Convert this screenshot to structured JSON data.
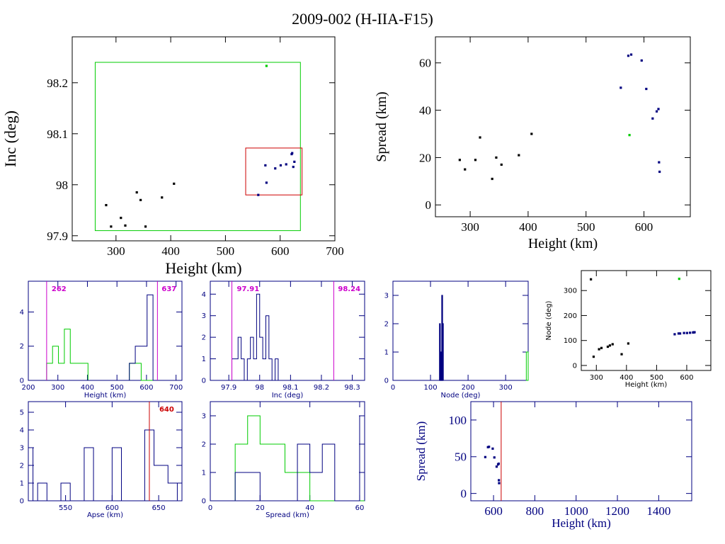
{
  "title": "2009-002 (H-IIA-F15)",
  "colors": {
    "green": "#00cc00",
    "blue": "#000080",
    "red": "#cc0000",
    "magenta": "#cc00cc",
    "black": "#000000"
  },
  "chart_data": [
    {
      "id": "inc-vs-height",
      "type": "scatter",
      "xlabel": "Height (km)",
      "ylabel": "Inc (deg)",
      "xlim": [
        220,
        700
      ],
      "ylim": [
        97.89,
        98.29
      ],
      "xticks": [
        300,
        400,
        500,
        600,
        700
      ],
      "yticks": [
        97.9,
        98,
        98.1,
        98.2
      ],
      "xtick_labels": [
        "300",
        "400",
        "500",
        "600",
        "700"
      ],
      "ytick_labels": [
        "97.9",
        "98",
        "98.1",
        "98.2"
      ],
      "points_black": [
        [
          282,
          97.96
        ],
        [
          291,
          97.918
        ],
        [
          309,
          97.935
        ],
        [
          317,
          97.92
        ],
        [
          338,
          97.985
        ],
        [
          345,
          97.97
        ],
        [
          354,
          97.918
        ],
        [
          384,
          97.975
        ],
        [
          406,
          98.002
        ]
      ],
      "points_blue": [
        [
          560,
          97.98
        ],
        [
          573,
          98.038
        ],
        [
          575,
          98.004
        ],
        [
          591,
          98.032
        ],
        [
          601,
          98.038
        ],
        [
          611,
          98.04
        ],
        [
          621,
          98.06
        ],
        [
          622,
          98.062
        ],
        [
          624,
          98.035
        ],
        [
          626,
          98.045
        ]
      ],
      "points_green": [
        [
          575,
          98.233
        ]
      ],
      "boxes": [
        {
          "x": [
            262,
            637
          ],
          "y": [
            97.91,
            98.24
          ],
          "color": "green"
        },
        {
          "x": [
            537,
            640
          ],
          "y": [
            97.98,
            98.072
          ],
          "color": "red"
        }
      ]
    },
    {
      "id": "spread-vs-height",
      "type": "scatter",
      "xlabel": "Height (km)",
      "ylabel": "Spread (km)",
      "xlim": [
        240,
        680
      ],
      "ylim": [
        -5,
        71
      ],
      "xticks": [
        300,
        400,
        500,
        600
      ],
      "yticks": [
        0,
        20,
        40,
        60
      ],
      "xtick_labels": [
        "300",
        "400",
        "500",
        "600"
      ],
      "ytick_labels": [
        "0",
        "20",
        "40",
        "60"
      ],
      "points_black": [
        [
          282,
          19
        ],
        [
          291,
          15
        ],
        [
          309,
          19
        ],
        [
          317,
          28.5
        ],
        [
          338,
          11
        ],
        [
          345,
          20
        ],
        [
          354,
          17
        ],
        [
          384,
          21
        ],
        [
          406,
          30
        ]
      ],
      "points_blue": [
        [
          560,
          49.5
        ],
        [
          573,
          63
        ],
        [
          578,
          63.5
        ],
        [
          596,
          61
        ],
        [
          604,
          49
        ],
        [
          615,
          36.5
        ],
        [
          622,
          39.5
        ],
        [
          625,
          40.5
        ],
        [
          626,
          18
        ],
        [
          627,
          14
        ]
      ],
      "points_green": [
        [
          575,
          29.5
        ]
      ]
    },
    {
      "id": "hist-height",
      "type": "bar",
      "xlabel": "Height (km)",
      "xlim": [
        200,
        720
      ],
      "ylim": [
        0,
        5.8
      ],
      "xticks": [
        200,
        300,
        400,
        500,
        600,
        700
      ],
      "yticks": [
        0,
        2,
        4
      ],
      "xtick_labels": [
        "200",
        "300",
        "400",
        "500",
        "600",
        "700"
      ],
      "ytick_labels": [
        "0",
        "2",
        "4"
      ],
      "bin_edges": [
        262,
        282,
        302,
        322,
        342,
        362,
        382,
        402,
        422,
        442,
        462,
        482,
        502,
        522,
        542,
        562,
        582,
        602,
        622,
        642
      ],
      "counts_green": [
        1,
        2,
        1,
        3,
        1,
        1,
        1,
        0,
        0,
        0,
        0,
        0,
        0,
        0,
        1,
        1,
        0,
        0,
        0
      ],
      "counts_blue": [
        0,
        0,
        0,
        0,
        0,
        0,
        0,
        0,
        0,
        0,
        0,
        0,
        0,
        0,
        1,
        2,
        2,
        5,
        0
      ],
      "vlines": [
        262,
        637
      ],
      "labels": [
        "262",
        "637"
      ]
    },
    {
      "id": "hist-inc",
      "type": "bar",
      "xlabel": "Inc (deg)",
      "xlim": [
        97.84,
        98.34
      ],
      "ylim": [
        0,
        4.6
      ],
      "xticks": [
        97.9,
        98,
        98.1,
        98.2,
        98.3
      ],
      "yticks": [
        0,
        1,
        2,
        3,
        4
      ],
      "xtick_labels": [
        "97.9",
        "98",
        "98.1",
        "98.2",
        "98.3"
      ],
      "ytick_labels": [
        "0",
        "1",
        "2",
        "3",
        "4"
      ],
      "bin_edges": [
        97.91,
        97.92,
        97.93,
        97.94,
        97.95,
        97.96,
        97.97,
        97.98,
        97.99,
        98.0,
        98.01,
        98.02,
        98.03,
        98.04,
        98.05,
        98.06,
        98.07
      ],
      "counts": [
        1,
        1,
        2,
        1,
        0,
        1,
        2,
        1,
        4,
        2,
        1,
        3,
        1,
        0,
        1,
        0
      ],
      "vlines": [
        97.91,
        98.24
      ],
      "labels": [
        "97.91",
        "98.24"
      ]
    },
    {
      "id": "hist-node",
      "type": "bar",
      "xlabel": "Node (deg)",
      "xlim": [
        0,
        360
      ],
      "ylim": [
        0,
        3.5
      ],
      "xticks": [
        0,
        100,
        200,
        300
      ],
      "yticks": [
        0,
        1,
        2,
        3
      ],
      "xtick_labels": [
        "0",
        "100",
        "200",
        "300"
      ],
      "ytick_labels": [
        "0",
        "1",
        "2",
        "3"
      ],
      "bars_blue": [
        [
          124,
          126,
          2
        ],
        [
          126,
          128,
          1
        ],
        [
          128,
          130,
          1
        ],
        [
          130,
          132,
          3
        ],
        [
          132,
          134,
          2
        ]
      ],
      "bars_green": [
        [
          355,
          360,
          1
        ]
      ]
    },
    {
      "id": "node-vs-height",
      "type": "scatter",
      "xlabel": "Height (km)",
      "ylabel": "Node (deg)",
      "xlim": [
        250,
        680
      ],
      "ylim": [
        -20,
        380
      ],
      "xticks": [
        300,
        400,
        500,
        600
      ],
      "yticks": [
        0,
        100,
        200,
        300
      ],
      "xtick_labels": [
        "300",
        "400",
        "500",
        "600"
      ],
      "ytick_labels": [
        "0",
        "100",
        "200",
        "300"
      ],
      "points_black": [
        [
          282,
          345
        ],
        [
          291,
          35
        ],
        [
          309,
          65
        ],
        [
          317,
          70
        ],
        [
          338,
          75
        ],
        [
          345,
          80
        ],
        [
          354,
          85
        ],
        [
          384,
          45
        ],
        [
          406,
          88
        ]
      ],
      "points_blue": [
        [
          560,
          125
        ],
        [
          573,
          128
        ],
        [
          578,
          128
        ],
        [
          591,
          130
        ],
        [
          601,
          130
        ],
        [
          611,
          131
        ],
        [
          621,
          132
        ],
        [
          622,
          132
        ],
        [
          624,
          133
        ],
        [
          626,
          133
        ]
      ],
      "points_green": [
        [
          575,
          347
        ]
      ]
    },
    {
      "id": "hist-apse",
      "type": "bar",
      "xlabel": "Apse (km)",
      "xlim": [
        510,
        675
      ],
      "ylim": [
        0,
        5.6
      ],
      "xticks": [
        550,
        600,
        650
      ],
      "yticks": [
        0,
        1,
        2,
        3,
        4,
        5
      ],
      "xtick_labels": [
        "550",
        "600",
        "650"
      ],
      "ytick_labels": [
        "0",
        "1",
        "2",
        "3",
        "4",
        "5"
      ],
      "bin_edges": [
        510,
        515,
        520,
        525,
        530,
        535,
        540,
        545,
        550,
        555,
        560,
        565,
        570,
        575,
        580,
        585,
        590,
        595,
        600,
        605,
        610,
        615,
        620,
        625,
        630,
        635,
        640,
        645,
        650,
        655,
        660,
        665,
        670,
        675
      ],
      "counts": [
        3,
        0,
        1,
        1,
        0,
        0,
        0,
        1,
        1,
        0,
        0,
        0,
        3,
        3,
        0,
        0,
        0,
        0,
        3,
        3,
        0,
        0,
        0,
        0,
        0,
        4,
        4,
        2,
        2,
        2,
        1,
        1,
        0
      ],
      "vlines": [
        640
      ],
      "labels": [
        "640"
      ]
    },
    {
      "id": "hist-spread",
      "type": "bar",
      "xlabel": "Spread (km)",
      "xlim": [
        0,
        62
      ],
      "ylim": [
        0,
        3.5
      ],
      "xticks": [
        0,
        20,
        40,
        60
      ],
      "yticks": [
        0,
        1,
        2,
        3
      ],
      "xtick_labels": [
        "0",
        "20",
        "40",
        "60"
      ],
      "ytick_labels": [
        "0",
        "1",
        "2",
        "3"
      ],
      "bin_edges": [
        10,
        15,
        20,
        25,
        30,
        35,
        40,
        45,
        50,
        55,
        60,
        62
      ],
      "counts_green": [
        2,
        3,
        2,
        2,
        1,
        1,
        0,
        0,
        0,
        0,
        0
      ],
      "counts_blue": [
        1,
        1,
        0,
        0,
        0,
        2,
        1,
        2,
        0,
        0,
        3
      ]
    },
    {
      "id": "spread-vs-height-wide",
      "type": "scatter",
      "xlabel": "Height (km)",
      "ylabel": "Spread (km)",
      "xlim": [
        490,
        1560
      ],
      "ylim": [
        -10,
        125
      ],
      "xticks": [
        600,
        800,
        1000,
        1200,
        1400
      ],
      "yticks": [
        0,
        50,
        100
      ],
      "xtick_labels": [
        "600",
        "800",
        "1000",
        "1200",
        "1400"
      ],
      "ytick_labels": [
        "0",
        "50",
        "100"
      ],
      "points_blue": [
        [
          560,
          49.5
        ],
        [
          573,
          63
        ],
        [
          578,
          63.5
        ],
        [
          596,
          61
        ],
        [
          604,
          49
        ],
        [
          615,
          36.5
        ],
        [
          622,
          39.5
        ],
        [
          625,
          40.5
        ],
        [
          626,
          18
        ],
        [
          627,
          14
        ]
      ],
      "vlines": [
        637
      ]
    }
  ]
}
